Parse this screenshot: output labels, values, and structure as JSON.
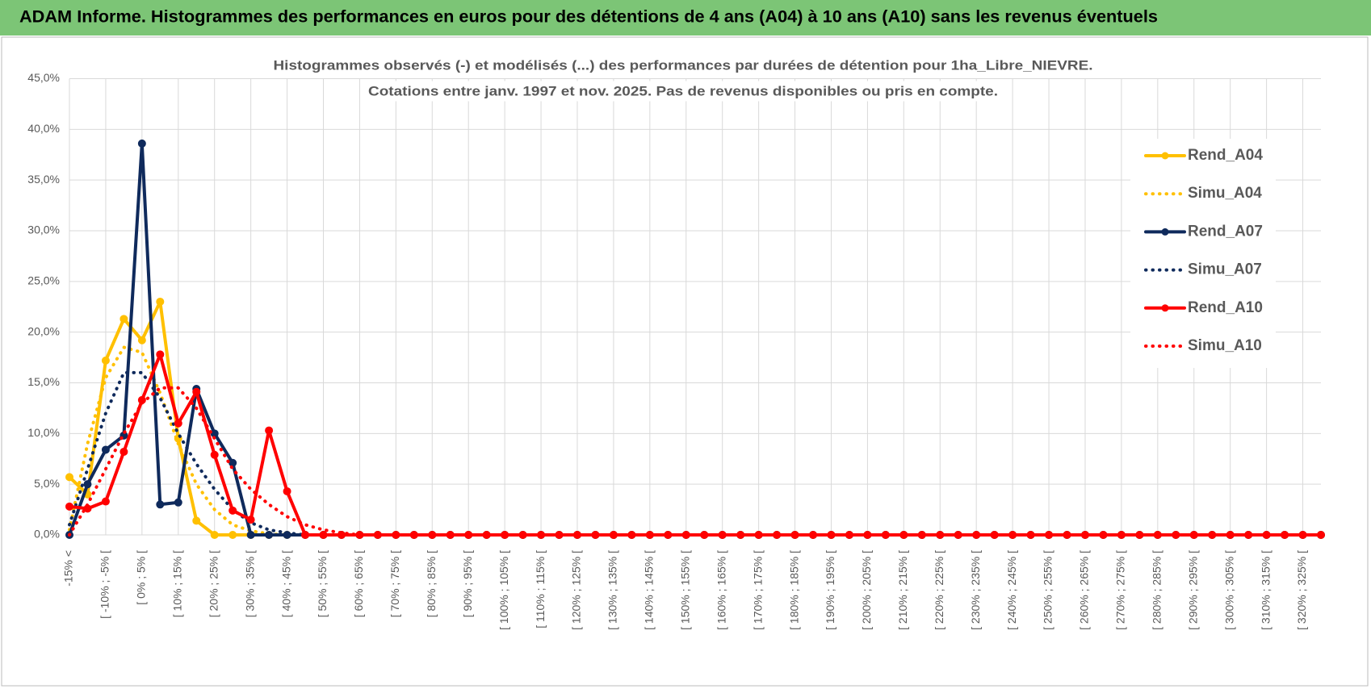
{
  "header": {
    "title": "ADAM Informe. Histogrammes des performances en euros pour des détentions de 4 ans (A04) à 10 ans (A10) sans les revenus éventuels"
  },
  "chart_data": {
    "type": "line",
    "title": "Histogrammes observés (-) et modélisés (...) des performances par durées de détention pour 1ha_Libre_NIEVRE.",
    "subtitle": "Cotations entre janv. 1997 et nov. 2025. Pas de revenus disponibles ou pris en compte.",
    "categories": [
      "-15% <",
      null,
      "[ -10% ; -5% [",
      null,
      "[ 0% ; 5% [",
      null,
      "[ 10% ; 15% [",
      null,
      "[ 20% ; 25% [",
      null,
      "[ 30% ; 35% [",
      null,
      "[ 40% ; 45% [",
      null,
      "[ 50% ; 55% [",
      null,
      "[ 60% ; 65% [",
      null,
      "[ 70% ; 75% [",
      null,
      "[ 80% ; 85% [",
      null,
      "[ 90% ; 95% [",
      null,
      "[ 100% ; 105% [",
      null,
      "[ 110% ; 115% [",
      null,
      "[ 120% ; 125% [",
      null,
      "[ 130% ; 135% [",
      null,
      "[ 140% ; 145% [",
      null,
      "[ 150% ; 155% [",
      null,
      "[ 160% ; 165% [",
      null,
      "[ 170% ; 175% [",
      null,
      "[ 180% ; 185% [",
      null,
      "[ 190% ; 195% [",
      null,
      "[ 200% ; 205% [",
      null,
      "[ 210% ; 215% [",
      null,
      "[ 220% ; 225% [",
      null,
      "[ 230% ; 235% [",
      null,
      "[ 240% ; 245% [",
      null,
      "[ 250% ; 255% [",
      null,
      "[ 260% ; 265% [",
      null,
      "[ 270% ; 275% [",
      null,
      "[ 280% ; 285% [",
      null,
      "[ 290% ; 295% [",
      null,
      "[ 300% ; 305% [",
      null,
      "[ 310% ; 315% [",
      null,
      "[ 320% ; 325% [",
      null
    ],
    "series": [
      {
        "name": "Rend_A04",
        "color": "#FFC000",
        "style": "solid",
        "markers": true,
        "values": [
          5.7,
          4,
          17.2,
          21.3,
          19.2,
          23,
          9.5,
          1.4,
          0,
          0,
          0,
          0,
          0,
          0,
          0,
          0,
          0,
          0,
          0,
          0,
          0,
          0,
          0,
          0,
          0,
          0,
          0,
          0,
          0,
          0,
          0,
          0,
          0,
          0,
          0,
          0,
          0,
          0,
          0,
          0,
          0,
          0,
          0,
          0,
          0,
          0,
          0,
          0,
          0,
          0,
          0,
          0,
          0,
          0,
          0,
          0,
          0,
          0,
          0,
          0,
          0,
          0,
          0,
          0,
          0,
          0,
          0,
          0,
          0,
          0
        ]
      },
      {
        "name": "Simu_A04",
        "color": "#FFC000",
        "style": "dotted",
        "markers": false,
        "values": [
          0.5,
          9,
          15.5,
          18.5,
          18,
          14,
          9,
          5,
          2.5,
          1,
          0.4,
          0.1,
          0,
          0,
          0,
          0,
          0,
          0,
          0,
          0,
          0,
          0,
          0,
          0,
          0,
          0,
          0,
          0,
          0,
          0,
          0,
          0,
          0,
          0,
          0,
          0,
          0,
          0,
          0,
          0,
          0,
          0,
          0,
          0,
          0,
          0,
          0,
          0,
          0,
          0,
          0,
          0,
          0,
          0,
          0,
          0,
          0,
          0,
          0,
          0,
          0,
          0,
          0,
          0,
          0,
          0,
          0,
          0,
          0,
          0
        ]
      },
      {
        "name": "Rend_A07",
        "color": "#0F2A5C",
        "style": "solid",
        "markers": true,
        "values": [
          0,
          5,
          8.4,
          9.8,
          38.6,
          3,
          3.2,
          14.4,
          10,
          7.1,
          0,
          0,
          0,
          0,
          0,
          0,
          0,
          0,
          0,
          0,
          0,
          0,
          0,
          0,
          0,
          0,
          0,
          0,
          0,
          0,
          0,
          0,
          0,
          0,
          0,
          0,
          0,
          0,
          0,
          0,
          0,
          0,
          0,
          0,
          0,
          0,
          0,
          0,
          0,
          0,
          0,
          0,
          0,
          0,
          0,
          0,
          0,
          0,
          0,
          0,
          0,
          0,
          0,
          0,
          0,
          0,
          0,
          0,
          0,
          0
        ]
      },
      {
        "name": "Simu_A07",
        "color": "#0F2A5C",
        "style": "dotted",
        "markers": false,
        "values": [
          1,
          6.5,
          12,
          16,
          16,
          13.5,
          10,
          7,
          4.5,
          2.5,
          1.2,
          0.5,
          0.2,
          0,
          0,
          0,
          0,
          0,
          0,
          0,
          0,
          0,
          0,
          0,
          0,
          0,
          0,
          0,
          0,
          0,
          0,
          0,
          0,
          0,
          0,
          0,
          0,
          0,
          0,
          0,
          0,
          0,
          0,
          0,
          0,
          0,
          0,
          0,
          0,
          0,
          0,
          0,
          0,
          0,
          0,
          0,
          0,
          0,
          0,
          0,
          0,
          0,
          0,
          0,
          0,
          0,
          0,
          0,
          0,
          0
        ]
      },
      {
        "name": "Rend_A10",
        "color": "#FF0000",
        "style": "solid",
        "markers": true,
        "values": [
          2.8,
          2.6,
          3.3,
          8.2,
          13.3,
          17.8,
          11,
          14.1,
          7.9,
          2.4,
          1.5,
          10.3,
          4.3,
          0,
          0,
          0,
          0,
          0,
          0,
          0,
          0,
          0,
          0,
          0,
          0,
          0,
          0,
          0,
          0,
          0,
          0,
          0,
          0,
          0,
          0,
          0,
          0,
          0,
          0,
          0,
          0,
          0,
          0,
          0,
          0,
          0,
          0,
          0,
          0,
          0,
          0,
          0,
          0,
          0,
          0,
          0,
          0,
          0,
          0,
          0,
          0,
          0,
          0,
          0,
          0,
          0,
          0,
          0,
          0,
          0
        ]
      },
      {
        "name": "Simu_A10",
        "color": "#FF0000",
        "style": "dotted",
        "markers": false,
        "values": [
          0,
          3,
          6.5,
          10,
          13,
          14.5,
          14.5,
          12.5,
          9.5,
          6.5,
          4.5,
          3,
          1.8,
          1,
          0.5,
          0.2,
          0,
          0,
          0,
          0,
          0,
          0,
          0,
          0,
          0,
          0,
          0,
          0,
          0,
          0,
          0,
          0,
          0,
          0,
          0,
          0,
          0,
          0,
          0,
          0,
          0,
          0,
          0,
          0,
          0,
          0,
          0,
          0,
          0,
          0,
          0,
          0,
          0,
          0,
          0,
          0,
          0,
          0,
          0,
          0,
          0,
          0,
          0,
          0,
          0,
          0,
          0,
          0,
          0,
          0
        ]
      }
    ],
    "ylim": [
      0,
      45
    ],
    "yticks": [
      {
        "value": 0,
        "label": "0,0%"
      },
      {
        "value": 5,
        "label": "5,0%"
      },
      {
        "value": 10,
        "label": "10,0%"
      },
      {
        "value": 15,
        "label": "15,0%"
      },
      {
        "value": 20,
        "label": "20,0%"
      },
      {
        "value": 25,
        "label": "25,0%"
      },
      {
        "value": 30,
        "label": "30,0%"
      },
      {
        "value": 35,
        "label": "35,0%"
      },
      {
        "value": 40,
        "label": "40,0%"
      },
      {
        "value": 45,
        "label": "45,0%"
      }
    ],
    "grid": true,
    "legend": "right"
  }
}
